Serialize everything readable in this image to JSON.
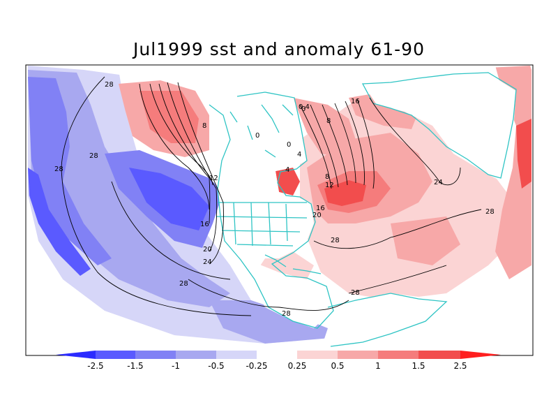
{
  "title": "Jul1999 sst and anomaly 61-90",
  "colorbar": {
    "boundaries": [
      "-2.5",
      "-1.5",
      "-1",
      "-0.5",
      "-0.25",
      "0.25",
      "0.5",
      "1",
      "1.5",
      "2.5"
    ],
    "colors": [
      "#2b2bff",
      "#5a5aff",
      "#8181f5",
      "#a8a8f0",
      "#d6d6f8",
      "#ffffff",
      "#fbd4d4",
      "#f7a8a8",
      "#f57c7c",
      "#f24d4d",
      "#ff1f1f"
    ]
  },
  "colors": {
    "coastline": "#2ec4c4",
    "contour": "#000000",
    "frame": "#000000"
  },
  "contour_labels": [
    "28",
    "28",
    "8",
    "12",
    "16",
    "20",
    "24",
    "28",
    "28",
    "28",
    "0",
    "0",
    "0",
    "4",
    "4",
    "8",
    "12",
    "16",
    "20",
    "24",
    "28",
    "28",
    "28",
    "16",
    "8",
    "0.4"
  ]
}
